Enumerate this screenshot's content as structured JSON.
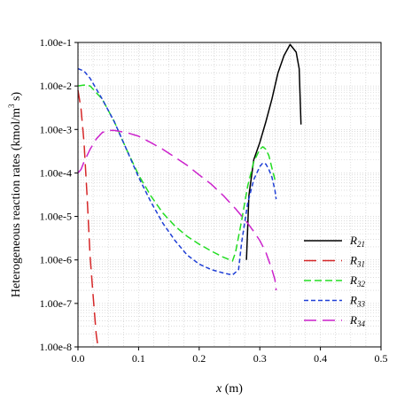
{
  "chart_data": {
    "type": "line",
    "xlabel": "x (m)",
    "xlabel_var": "x",
    "xlabel_unit": " (m)",
    "ylabel": "Heterogeneous reaction rates (kmol/m3 s)",
    "ylabel_main": "Heterogeneous reaction rates (kmol/m",
    "ylabel_sup": "3",
    "ylabel_tail": " s)",
    "xlim": [
      0,
      0.5
    ],
    "ylim": [
      1e-08,
      0.1
    ],
    "yscale": "log",
    "grid": true,
    "legend_position": "right",
    "x_ticks": [
      {
        "value": 0.0,
        "label": "0.0"
      },
      {
        "value": 0.1,
        "label": "0.1"
      },
      {
        "value": 0.2,
        "label": "0.2"
      },
      {
        "value": 0.3,
        "label": "0.3"
      },
      {
        "value": 0.4,
        "label": "0.4"
      },
      {
        "value": 0.5,
        "label": "0.5"
      }
    ],
    "y_ticks": [
      {
        "value": 0.1,
        "label": "1.00e-1"
      },
      {
        "value": 0.01,
        "label": "1.00e-2"
      },
      {
        "value": 0.001,
        "label": "1.00e-3"
      },
      {
        "value": 0.0001,
        "label": "1.00e-4"
      },
      {
        "value": 1e-05,
        "label": "1.00e-5"
      },
      {
        "value": 1e-06,
        "label": "1.00e-6"
      },
      {
        "value": 1e-07,
        "label": "1.00e-7"
      },
      {
        "value": 1e-08,
        "label": "1.00e-8"
      }
    ],
    "series": [
      {
        "name": "R21",
        "name_main": "R",
        "name_sub": "21",
        "color": "#000000",
        "dash": "solid",
        "x": [
          0.278,
          0.282,
          0.29,
          0.3,
          0.31,
          0.32,
          0.33,
          0.34,
          0.35,
          0.36,
          0.365,
          0.368
        ],
        "y": [
          1e-06,
          3e-05,
          0.0002,
          0.0005,
          0.0015,
          0.005,
          0.02,
          0.05,
          0.09,
          0.06,
          0.025,
          0.0013
        ]
      },
      {
        "name": "R31",
        "name_main": "R",
        "name_sub": "31",
        "color": "#d62728",
        "dash": "long",
        "x": [
          0.0,
          0.005,
          0.01,
          0.015,
          0.02,
          0.025,
          0.03,
          0.033
        ],
        "y": [
          0.008,
          0.003,
          0.0005,
          3e-05,
          1.2e-06,
          1.5e-07,
          2e-08,
          1e-08
        ]
      },
      {
        "name": "R32",
        "name_main": "R",
        "name_sub": "32",
        "color": "#22dd22",
        "dash": "medium",
        "x": [
          0.0,
          0.01,
          0.02,
          0.04,
          0.06,
          0.08,
          0.1,
          0.12,
          0.14,
          0.16,
          0.18,
          0.2,
          0.22,
          0.24,
          0.255,
          0.26,
          0.27,
          0.28,
          0.29,
          0.3,
          0.305,
          0.31,
          0.315,
          0.32,
          0.325
        ],
        "y": [
          0.01,
          0.0105,
          0.01,
          0.005,
          0.0015,
          0.00035,
          9e-05,
          3e-05,
          1.2e-05,
          6e-06,
          3.5e-06,
          2.3e-06,
          1.6e-06,
          1.15e-06,
          9.5e-07,
          1.5e-06,
          8e-06,
          5e-05,
          0.00018,
          0.00035,
          0.0004,
          0.00035,
          0.00025,
          0.00013,
          7e-05
        ]
      },
      {
        "name": "R33",
        "name_main": "R",
        "name_sub": "33",
        "color": "#1f3fd6",
        "dash": "short",
        "x": [
          0.0,
          0.01,
          0.02,
          0.04,
          0.06,
          0.08,
          0.1,
          0.12,
          0.14,
          0.16,
          0.18,
          0.2,
          0.22,
          0.24,
          0.255,
          0.265,
          0.27,
          0.28,
          0.29,
          0.3,
          0.305,
          0.31,
          0.315,
          0.32,
          0.325,
          0.327
        ],
        "y": [
          0.025,
          0.022,
          0.015,
          0.005,
          0.0015,
          0.00035,
          8e-05,
          2.2e-05,
          7e-06,
          2.8e-06,
          1.3e-06,
          8e-07,
          6e-07,
          5e-07,
          4.5e-07,
          6e-07,
          2.5e-06,
          2e-05,
          7e-05,
          0.00014,
          0.00017,
          0.00016,
          0.00012,
          8e-05,
          4e-05,
          2.5e-05
        ]
      },
      {
        "name": "R34",
        "name_main": "R",
        "name_sub": "34",
        "color": "#cc22cc",
        "dash": "long",
        "x": [
          0.0,
          0.005,
          0.01,
          0.02,
          0.03,
          0.04,
          0.05,
          0.06,
          0.08,
          0.1,
          0.12,
          0.14,
          0.16,
          0.18,
          0.2,
          0.22,
          0.24,
          0.26,
          0.28,
          0.29,
          0.3,
          0.31,
          0.32,
          0.325,
          0.327
        ],
        "y": [
          0.0001,
          0.00012,
          0.00018,
          0.00035,
          0.0006,
          0.00085,
          0.00095,
          0.00095,
          0.00085,
          0.0007,
          0.0005,
          0.00035,
          0.00023,
          0.00015,
          9e-05,
          5.5e-05,
          3e-05,
          1.5e-05,
          7e-06,
          4.5e-06,
          2.8e-06,
          1.5e-06,
          6e-07,
          3.5e-07,
          2e-07
        ]
      }
    ]
  }
}
